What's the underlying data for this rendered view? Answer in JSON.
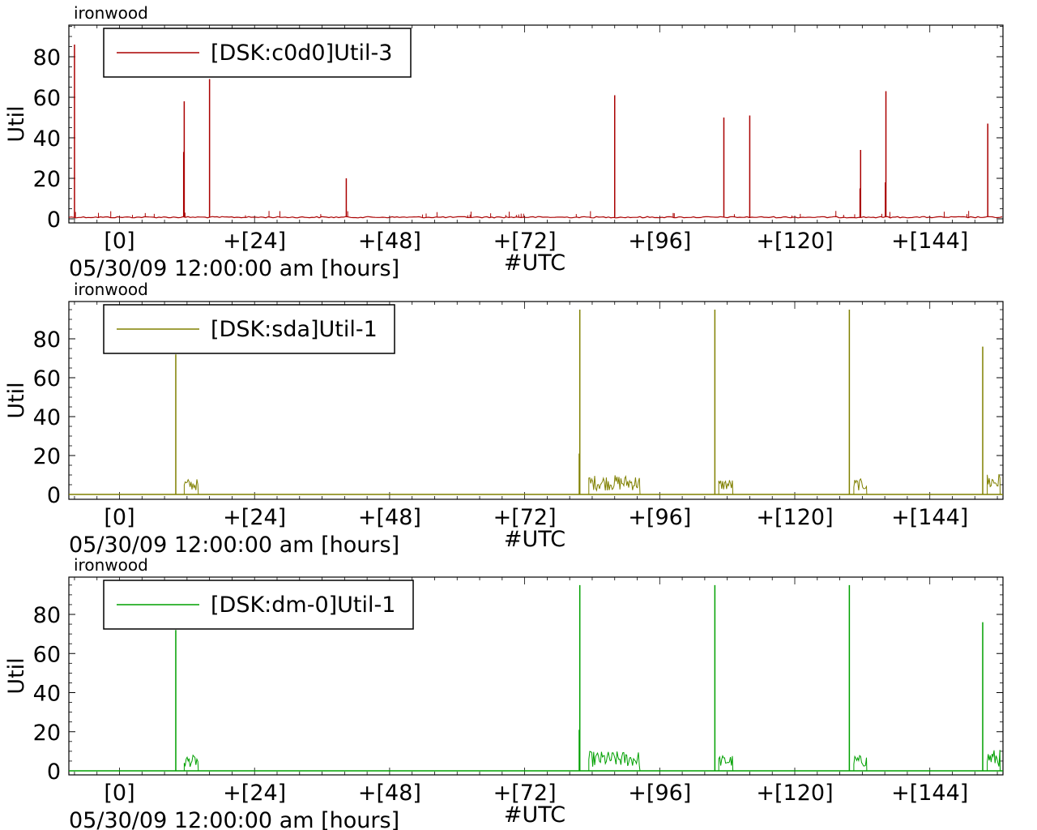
{
  "window": {
    "width": 1280,
    "height": 1024
  },
  "charts": [
    {
      "host": "ironwood",
      "ylabel": "Util",
      "xlabel_left": "05/30/09 12:00:00 am [hours]",
      "xlabel_center": "#UTC",
      "legend_label": "[DSK:c0d0]Util-3",
      "color": "#aa0000",
      "y_ticks": [
        "0",
        "20",
        "40",
        "60",
        "80"
      ],
      "x_ticks": [
        "[0]",
        "+[24]",
        "+[48]",
        "+[72]",
        "+[96]",
        "+[120]",
        "+[144]"
      ]
    },
    {
      "host": "ironwood",
      "ylabel": "Util",
      "xlabel_left": "05/30/09 12:00:00 am [hours]",
      "xlabel_center": "#UTC",
      "legend_label": "[DSK:sda]Util-1",
      "color": "#808000",
      "y_ticks": [
        "0",
        "20",
        "40",
        "60",
        "80"
      ],
      "x_ticks": [
        "[0]",
        "+[24]",
        "+[48]",
        "+[72]",
        "+[96]",
        "+[120]",
        "+[144]"
      ]
    },
    {
      "host": "ironwood",
      "ylabel": "Util",
      "xlabel_left": "05/30/09 12:00:00 am [hours]",
      "xlabel_center": "#UTC",
      "legend_label": "[DSK:dm-0]Util-1",
      "color": "#00a000",
      "y_ticks": [
        "0",
        "20",
        "40",
        "60",
        "80"
      ],
      "x_ticks": [
        "[0]",
        "+[24]",
        "+[48]",
        "+[72]",
        "+[96]",
        "+[120]",
        "+[144]"
      ]
    }
  ],
  "chart_data": [
    {
      "type": "line",
      "title": "ironwood",
      "ylabel": "Util",
      "xlabel": "05/30/09 12:00:00 am [hours]",
      "series": [
        {
          "name": "[DSK:c0d0]Util-3"
        }
      ],
      "xlim": [
        -9,
        157
      ],
      "ylim": [
        -2,
        96
      ],
      "baseline": 0.8,
      "spikes": [
        {
          "x": -8,
          "y": 86
        },
        {
          "x": 11.5,
          "y": 58
        },
        {
          "x": 11.4,
          "y": 33
        },
        {
          "x": 16,
          "y": 69
        },
        {
          "x": 40.3,
          "y": 20
        },
        {
          "x": 88,
          "y": 61
        },
        {
          "x": 107.4,
          "y": 50
        },
        {
          "x": 112,
          "y": 51
        },
        {
          "x": 131.7,
          "y": 34
        },
        {
          "x": 131.6,
          "y": 15
        },
        {
          "x": 136.2,
          "y": 63
        },
        {
          "x": 136.1,
          "y": 18
        },
        {
          "x": 154.3,
          "y": 47
        }
      ],
      "noise_regions": []
    },
    {
      "type": "line",
      "title": "ironwood",
      "ylabel": "Util",
      "xlabel": "05/30/09 12:00:00 am [hours]",
      "series": [
        {
          "name": "[DSK:sda]Util-1"
        }
      ],
      "xlim": [
        -9,
        157
      ],
      "ylim": [
        -2,
        98
      ],
      "baseline": 0,
      "spikes": [
        {
          "x": 10,
          "y": 72
        },
        {
          "x": 81.8,
          "y": 95
        },
        {
          "x": 81.7,
          "y": 21
        },
        {
          "x": 105.8,
          "y": 95
        },
        {
          "x": 129.7,
          "y": 95
        },
        {
          "x": 153.4,
          "y": 76
        }
      ],
      "noise_regions": [
        {
          "x0": 11.5,
          "x1": 14,
          "amp": 8
        },
        {
          "x0": 83.4,
          "x1": 92.5,
          "amp": 10
        },
        {
          "x0": 106.5,
          "x1": 109,
          "amp": 8
        },
        {
          "x0": 130.5,
          "x1": 132.8,
          "amp": 8
        },
        {
          "x0": 154.2,
          "x1": 156.5,
          "amp": 11
        }
      ]
    },
    {
      "type": "line",
      "title": "ironwood",
      "ylabel": "Util",
      "xlabel": "05/30/09 12:00:00 am [hours]",
      "series": [
        {
          "name": "[DSK:dm-0]Util-1"
        }
      ],
      "xlim": [
        -9,
        157
      ],
      "ylim": [
        -2,
        98
      ],
      "baseline": 0,
      "spikes": [
        {
          "x": 10,
          "y": 72
        },
        {
          "x": 81.8,
          "y": 95
        },
        {
          "x": 81.7,
          "y": 21
        },
        {
          "x": 105.8,
          "y": 95
        },
        {
          "x": 129.7,
          "y": 95
        },
        {
          "x": 153.4,
          "y": 76
        }
      ],
      "noise_regions": [
        {
          "x0": 11.5,
          "x1": 14,
          "amp": 8
        },
        {
          "x0": 83.4,
          "x1": 92.5,
          "amp": 10
        },
        {
          "x0": 106.5,
          "x1": 109,
          "amp": 8
        },
        {
          "x0": 130.5,
          "x1": 132.8,
          "amp": 8
        },
        {
          "x0": 154.2,
          "x1": 156.5,
          "amp": 11
        }
      ]
    }
  ]
}
